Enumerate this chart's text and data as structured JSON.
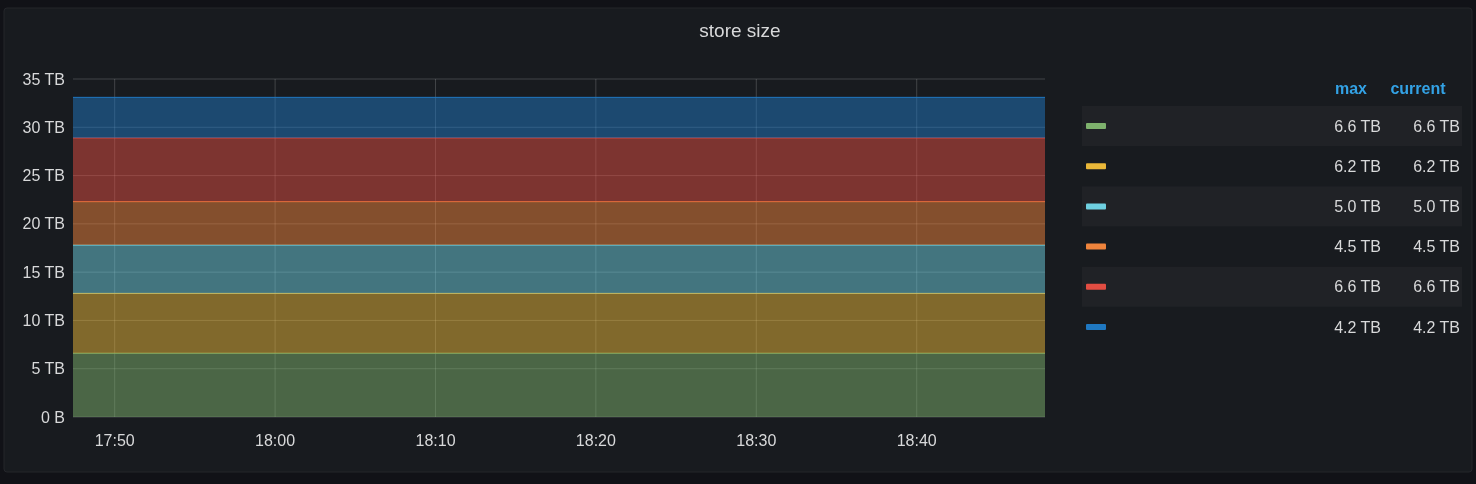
{
  "chart_data": {
    "type": "area",
    "stacked": true,
    "title": "store size",
    "x": [
      17.79,
      18.8
    ],
    "xlim": [
      17.79,
      18.8
    ],
    "xticks": [
      {
        "value": 17.8333,
        "label": "17:50"
      },
      {
        "value": 18,
        "label": "18:00"
      },
      {
        "value": 18.1667,
        "label": "18:10"
      },
      {
        "value": 18.3333,
        "label": "18:20"
      },
      {
        "value": 18.5,
        "label": "18:30"
      },
      {
        "value": 18.6667,
        "label": "18:40"
      }
    ],
    "ylim": [
      0,
      35
    ],
    "yticks": [
      {
        "value": 0,
        "label": "0 B"
      },
      {
        "value": 5,
        "label": "5 TB"
      },
      {
        "value": 10,
        "label": "10 TB"
      },
      {
        "value": 15,
        "label": "15 TB"
      },
      {
        "value": 20,
        "label": "20 TB"
      },
      {
        "value": 25,
        "label": "25 TB"
      },
      {
        "value": 30,
        "label": "30 TB"
      },
      {
        "value": 35,
        "label": "35 TB"
      }
    ],
    "grid": true,
    "annotations": [
      "max",
      "current",
      "6.6 TB",
      "6.6 TB",
      "6.2 TB",
      "6.2 TB",
      "5.0 TB",
      "5.0 TB",
      "4.5 TB",
      "4.5 TB",
      "6.6 TB",
      "6.6 TB",
      "4.2 TB",
      "4.2 TB"
    ],
    "series": [
      {
        "color": "#7eb26d",
        "values": [
          6.6,
          6.6
        ]
      },
      {
        "color": "#eab839",
        "values": [
          6.2,
          6.2
        ]
      },
      {
        "color": "#6ed0e0",
        "values": [
          5.0,
          5.0
        ]
      },
      {
        "color": "#ef843c",
        "values": [
          4.5,
          4.5
        ]
      },
      {
        "color": "#e24d42",
        "values": [
          6.6,
          6.6
        ]
      },
      {
        "color": "#1f78c1",
        "values": [
          4.2,
          4.2
        ]
      }
    ]
  }
}
